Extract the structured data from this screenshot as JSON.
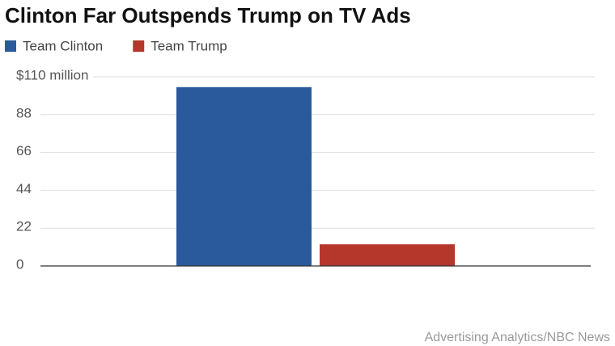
{
  "chart_data": {
    "type": "bar",
    "title": "Clinton Far Outspends Trump on TV Ads",
    "categories": [
      null
    ],
    "series": [
      {
        "name": "Team Clinton",
        "color": "#2a5a9c",
        "values": [
          104
        ]
      },
      {
        "name": "Team Trump",
        "color": "#b5372c",
        "values": [
          12.6
        ]
      }
    ],
    "ylim": [
      0,
      110
    ],
    "yticks": [
      0,
      22,
      44,
      66,
      88,
      {
        "value": 110,
        "label": "$110 million"
      }
    ],
    "grid": true,
    "legend": "top-left",
    "source": "Advertising Analytics/NBC News"
  }
}
